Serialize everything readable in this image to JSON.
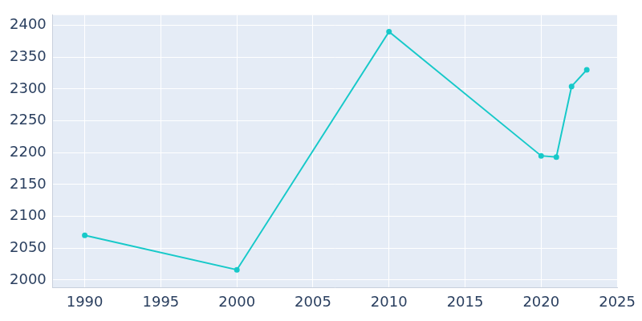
{
  "chart_data": {
    "type": "line",
    "x": [
      1990,
      2000,
      2010,
      2020,
      2021,
      2022,
      2023
    ],
    "values": [
      2070,
      2016,
      2390,
      2195,
      2193,
      2304,
      2330
    ],
    "color": "#17c9c9",
    "marker": "circle",
    "xlim": [
      1987.9,
      2025
    ],
    "xticks": [
      1990,
      1995,
      2000,
      2005,
      2010,
      2015,
      2020,
      2025
    ],
    "ylim": [
      1988,
      2416
    ],
    "yticks": [
      2000,
      2050,
      2100,
      2150,
      2200,
      2250,
      2300,
      2350,
      2400
    ],
    "grid": true
  }
}
